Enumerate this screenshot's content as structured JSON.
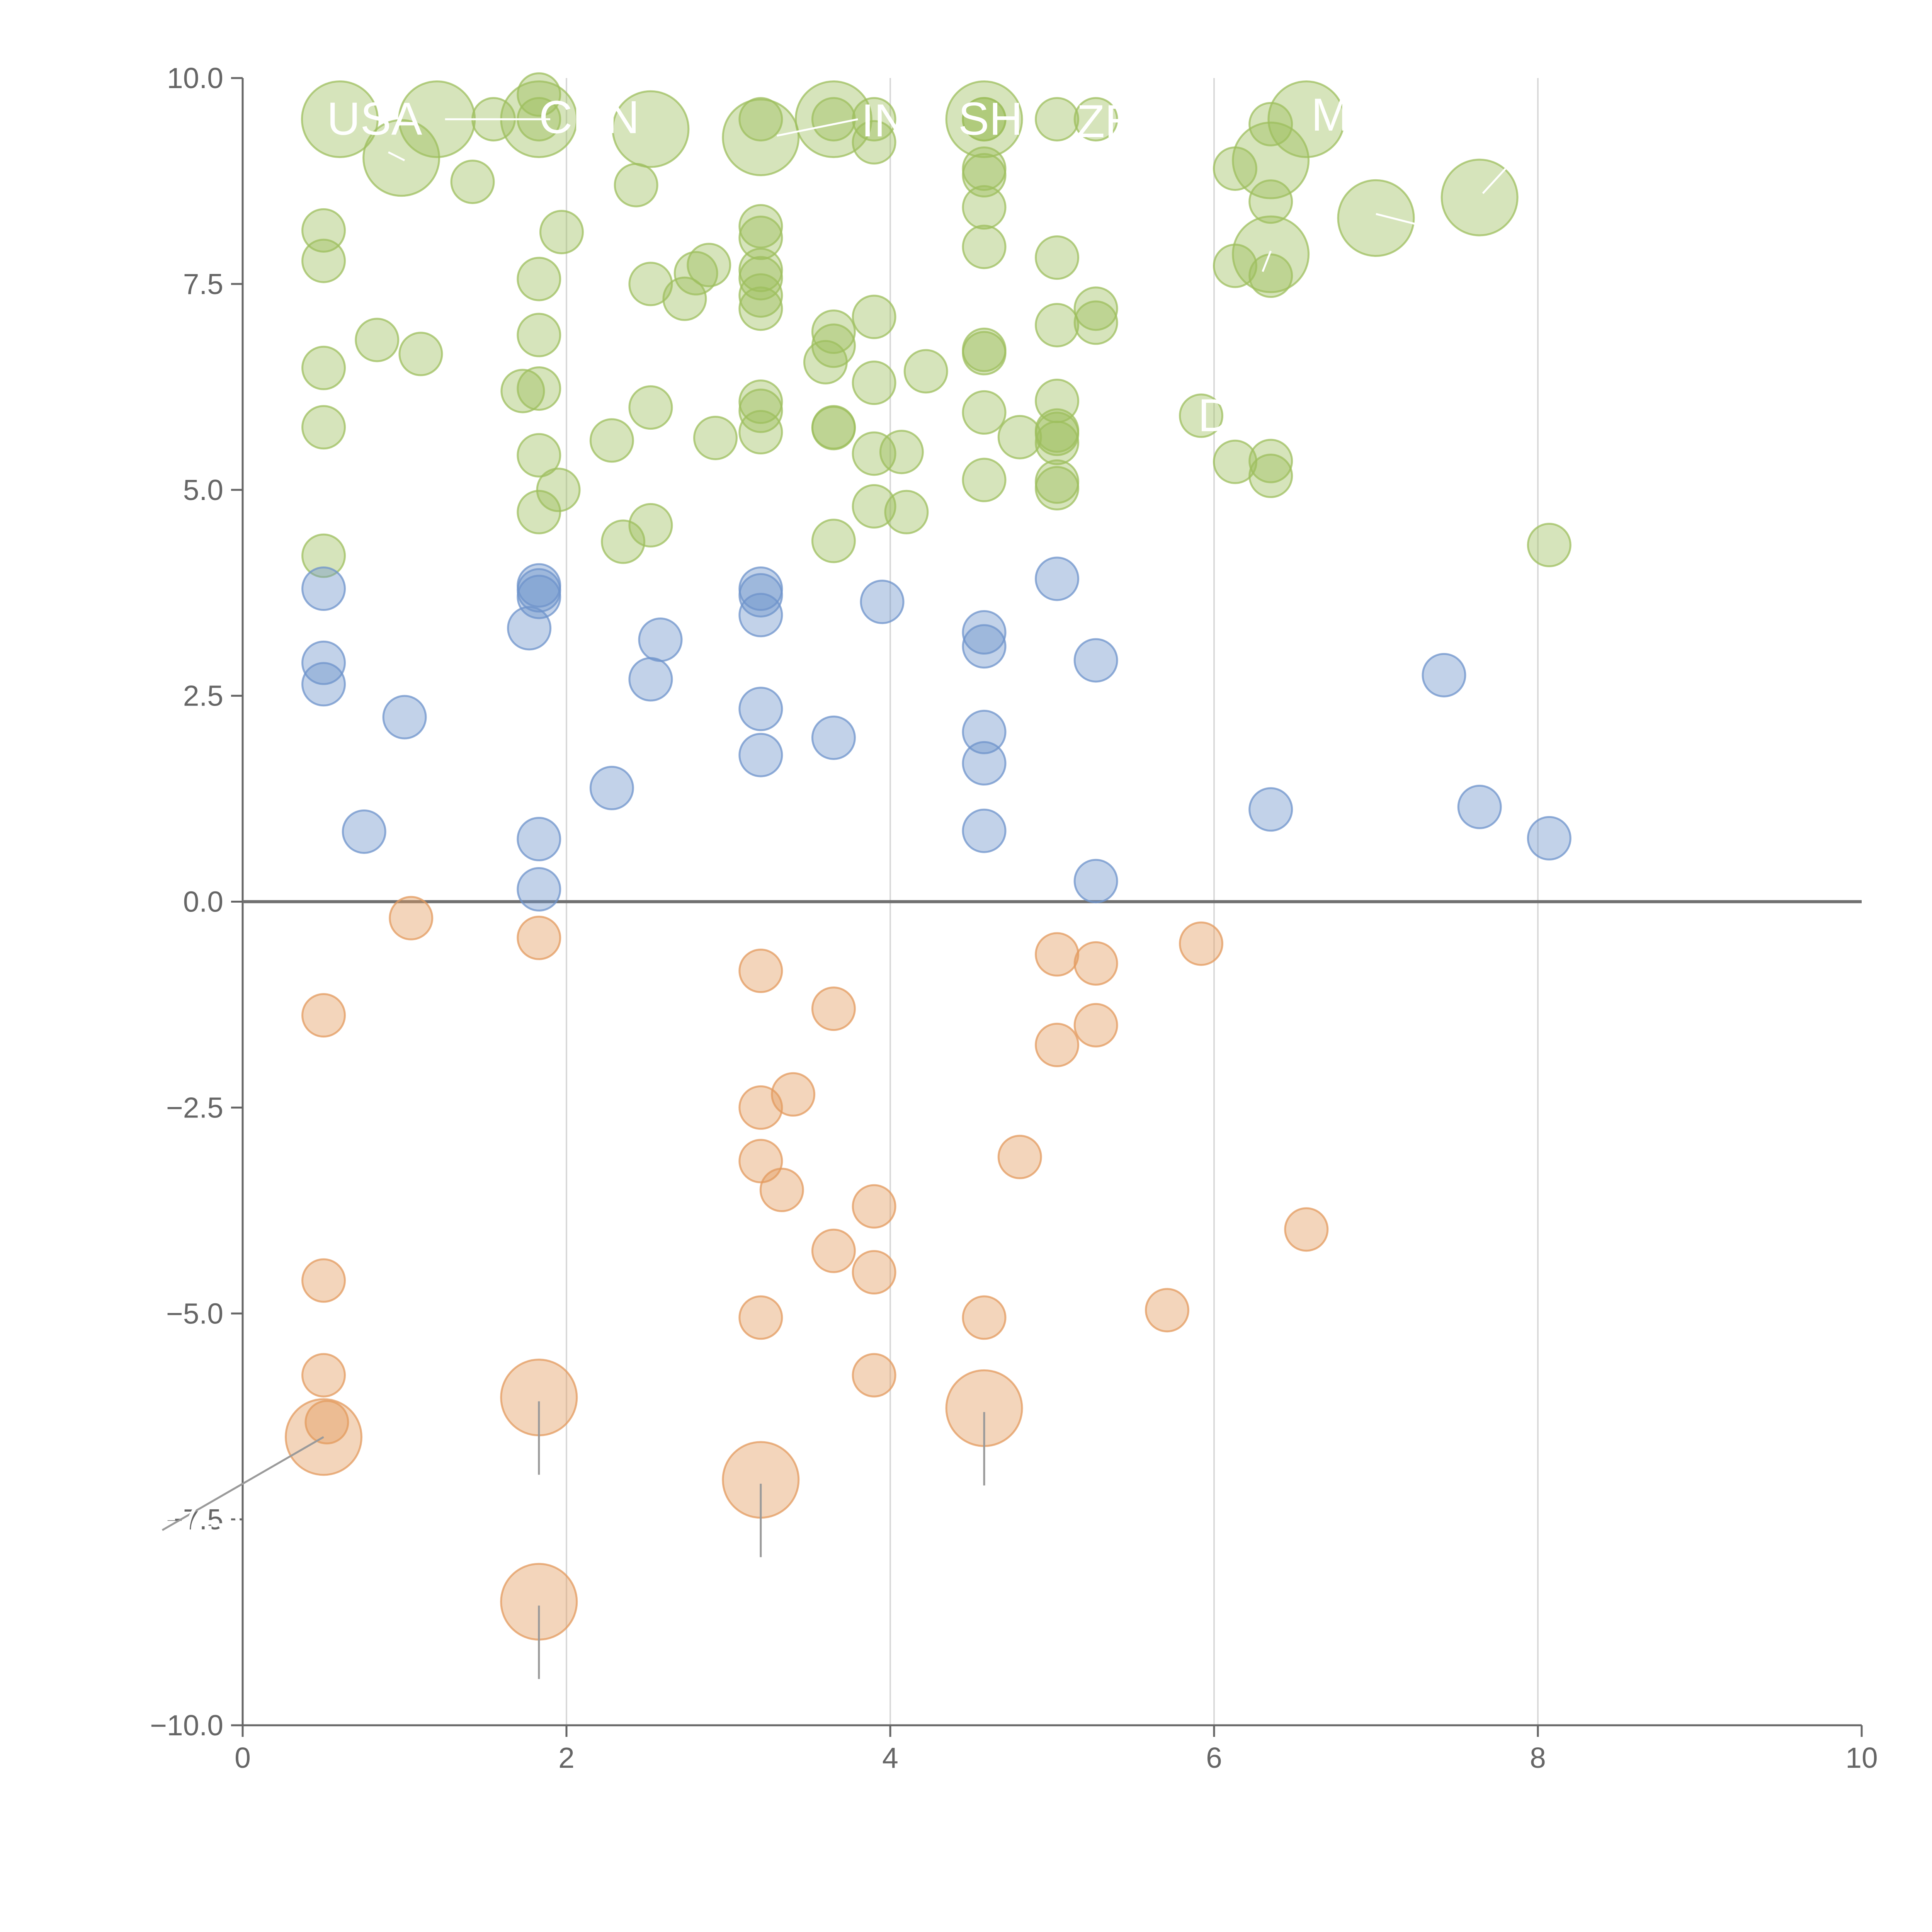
{
  "chart_data": {
    "type": "scatter",
    "title": "",
    "xlabel": "",
    "ylabel": "",
    "xlim": [
      0,
      10
    ],
    "ylim": [
      -10,
      10
    ],
    "x_ticks": [
      "0",
      "2",
      "4",
      "6",
      "8",
      "10"
    ],
    "y_ticks": [
      "10.0",
      "7.5",
      "5.0",
      "2.5",
      "0.0",
      "−2.5",
      "−5.0",
      "−7.5",
      "−10.0"
    ],
    "grid": "vertical",
    "zero_line": true,
    "colors": {
      "green": "#9dbf5e",
      "blue": "#6d93cb",
      "orange": "#e39a5e",
      "axis": "#666666",
      "grid": "#d9d9d9",
      "zero": "#707070"
    },
    "series": [
      {
        "name": "green",
        "points": [
          [
            0.5,
            8.15
          ],
          [
            0.5,
            7.78
          ],
          [
            0.5,
            6.48
          ],
          [
            0.5,
            5.76
          ],
          [
            0.5,
            4.2
          ],
          [
            0.83,
            6.82
          ],
          [
            1.1,
            6.65
          ],
          [
            1.42,
            8.74
          ],
          [
            1.55,
            9.5
          ],
          [
            1.73,
            6.2
          ],
          [
            1.83,
            7.56
          ],
          [
            1.83,
            6.88
          ],
          [
            1.83,
            6.23
          ],
          [
            1.83,
            5.42
          ],
          [
            1.83,
            4.73
          ],
          [
            1.83,
            9.5
          ],
          [
            1.83,
            9.8
          ],
          [
            1.95,
            5.0
          ],
          [
            1.97,
            8.13
          ],
          [
            2.28,
            5.6
          ],
          [
            2.35,
            4.37
          ],
          [
            2.43,
            8.7
          ],
          [
            2.52,
            7.5
          ],
          [
            2.52,
            6.0
          ],
          [
            2.52,
            4.57
          ],
          [
            2.73,
            7.32
          ],
          [
            2.8,
            7.63
          ],
          [
            2.88,
            7.73
          ],
          [
            2.92,
            5.63
          ],
          [
            3.2,
            9.5
          ],
          [
            3.2,
            8.2
          ],
          [
            3.2,
            8.06
          ],
          [
            3.2,
            7.67
          ],
          [
            3.2,
            7.57
          ],
          [
            3.2,
            7.36
          ],
          [
            3.2,
            7.2
          ],
          [
            3.2,
            6.07
          ],
          [
            3.2,
            5.96
          ],
          [
            3.2,
            5.7
          ],
          [
            3.6,
            6.55
          ],
          [
            3.65,
            6.92
          ],
          [
            3.65,
            6.75
          ],
          [
            3.65,
            5.76
          ],
          [
            3.65,
            5.75
          ],
          [
            3.65,
            4.38
          ],
          [
            3.65,
            9.5
          ],
          [
            3.9,
            9.5
          ],
          [
            3.9,
            9.22
          ],
          [
            3.9,
            7.1
          ],
          [
            3.9,
            6.3
          ],
          [
            3.9,
            5.44
          ],
          [
            3.9,
            4.8
          ],
          [
            4.07,
            5.46
          ],
          [
            4.1,
            4.73
          ],
          [
            4.22,
            6.44
          ],
          [
            4.58,
            9.5
          ],
          [
            4.58,
            9.5
          ],
          [
            4.58,
            8.9
          ],
          [
            4.58,
            8.82
          ],
          [
            4.58,
            8.43
          ],
          [
            4.58,
            7.95
          ],
          [
            4.58,
            6.7
          ],
          [
            4.58,
            6.66
          ],
          [
            4.58,
            5.94
          ],
          [
            4.58,
            5.12
          ],
          [
            4.8,
            5.64
          ],
          [
            5.03,
            9.5
          ],
          [
            5.03,
            7.82
          ],
          [
            5.03,
            7.0
          ],
          [
            5.03,
            6.08
          ],
          [
            5.03,
            5.72
          ],
          [
            5.03,
            5.68
          ],
          [
            5.03,
            5.57
          ],
          [
            5.03,
            5.1
          ],
          [
            5.03,
            5.02
          ],
          [
            5.27,
            9.5
          ],
          [
            5.27,
            7.2
          ],
          [
            5.27,
            7.03
          ],
          [
            5.92,
            5.9
          ],
          [
            6.13,
            8.9
          ],
          [
            6.13,
            7.72
          ],
          [
            6.13,
            5.34
          ],
          [
            6.35,
            9.44
          ],
          [
            6.35,
            8.5
          ],
          [
            6.35,
            7.6
          ],
          [
            6.35,
            5.35
          ],
          [
            6.35,
            5.17
          ],
          [
            8.07,
            4.33
          ]
        ]
      },
      {
        "name": "blue",
        "points": [
          [
            0.5,
            3.8
          ],
          [
            0.5,
            2.9
          ],
          [
            0.5,
            2.64
          ],
          [
            0.75,
            0.85
          ],
          [
            1.0,
            2.24
          ],
          [
            1.77,
            3.32
          ],
          [
            1.83,
            3.84
          ],
          [
            1.83,
            3.78
          ],
          [
            1.83,
            3.7
          ],
          [
            1.83,
            0.76
          ],
          [
            1.83,
            0.15
          ],
          [
            2.28,
            1.38
          ],
          [
            2.52,
            2.7
          ],
          [
            2.58,
            3.18
          ],
          [
            3.2,
            3.8
          ],
          [
            3.2,
            3.72
          ],
          [
            3.2,
            3.48
          ],
          [
            3.2,
            2.34
          ],
          [
            3.2,
            1.78
          ],
          [
            3.65,
            1.99
          ],
          [
            3.95,
            3.64
          ],
          [
            4.58,
            3.27
          ],
          [
            4.58,
            3.1
          ],
          [
            4.58,
            2.06
          ],
          [
            4.58,
            1.68
          ],
          [
            4.58,
            0.86
          ],
          [
            5.03,
            3.92
          ],
          [
            5.27,
            2.93
          ],
          [
            5.27,
            0.25
          ],
          [
            6.35,
            1.12
          ],
          [
            7.42,
            2.75
          ],
          [
            7.64,
            1.15
          ],
          [
            8.07,
            0.77
          ]
        ]
      },
      {
        "name": "orange",
        "points": [
          [
            0.5,
            -1.38
          ],
          [
            0.5,
            -4.6
          ],
          [
            0.5,
            -5.75
          ],
          [
            0.52,
            -6.32
          ],
          [
            1.04,
            -0.2
          ],
          [
            1.83,
            -0.44
          ],
          [
            3.2,
            -0.84
          ],
          [
            3.2,
            -2.5
          ],
          [
            3.2,
            -3.15
          ],
          [
            3.2,
            -5.05
          ],
          [
            3.33,
            -3.5
          ],
          [
            3.4,
            -2.34
          ],
          [
            3.65,
            -1.3
          ],
          [
            3.65,
            -4.24
          ],
          [
            3.9,
            -3.7
          ],
          [
            3.9,
            -4.5
          ],
          [
            3.9,
            -5.75
          ],
          [
            4.58,
            -5.05
          ],
          [
            4.8,
            -3.1
          ],
          [
            5.03,
            -0.64
          ],
          [
            5.03,
            -1.74
          ],
          [
            5.27,
            -0.75
          ],
          [
            5.27,
            -1.5
          ],
          [
            5.71,
            -4.96
          ],
          [
            5.92,
            -0.51
          ],
          [
            6.57,
            -3.98
          ]
        ]
      }
    ],
    "highlights": [
      {
        "series": "green",
        "points": [
          [
            0.6,
            9.5
          ],
          [
            0.98,
            9.03
          ],
          [
            1.2,
            9.5
          ],
          [
            1.83,
            9.5
          ],
          [
            2.52,
            9.38
          ],
          [
            3.2,
            9.28
          ],
          [
            3.65,
            9.5
          ],
          [
            4.58,
            9.5
          ],
          [
            6.35,
            9.0
          ],
          [
            6.35,
            7.86
          ],
          [
            6.57,
            9.5
          ],
          [
            7.0,
            8.3
          ],
          [
            7.64,
            8.55
          ]
        ]
      },
      {
        "series": "orange",
        "points": [
          [
            0.5,
            -6.5
          ],
          [
            1.83,
            -6.02
          ],
          [
            1.83,
            -8.5
          ],
          [
            3.2,
            -7.02
          ],
          [
            4.58,
            -6.15
          ]
        ]
      }
    ],
    "annotations": [
      {
        "text": "USA",
        "x": 0.52,
        "y": 9.5
      },
      {
        "text": "CHN",
        "x": 1.83,
        "y": 9.52
      },
      {
        "text": "IND",
        "x": 3.82,
        "y": 9.48
      },
      {
        "text": "SH",
        "x": 4.42,
        "y": 9.5
      },
      {
        "text": "ZE",
        "x": 5.15,
        "y": 9.47
      },
      {
        "text": "MEX",
        "x": 6.6,
        "y": 9.55
      },
      {
        "text": "DO",
        "x": 5.9,
        "y": 5.9
      },
      {
        "text": "-7.5",
        "x": -0.5,
        "y": -7.45
      }
    ]
  }
}
